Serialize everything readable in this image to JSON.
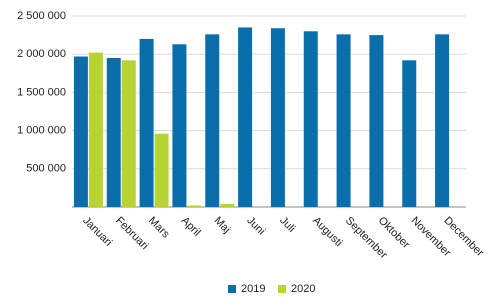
{
  "chart_data": {
    "type": "bar",
    "categories": [
      "Januari",
      "Februari",
      "Mars",
      "April",
      "Maj",
      "Juni",
      "Juli",
      "Augusti",
      "September",
      "Oktober",
      "November",
      "December"
    ],
    "series": [
      {
        "name": "2019",
        "color": "#0a6eab",
        "values": [
          1970000,
          1950000,
          2200000,
          2130000,
          2260000,
          2350000,
          2340000,
          2300000,
          2260000,
          2250000,
          1920000,
          2260000
        ]
      },
      {
        "name": "2020",
        "color": "#b6d433",
        "values": [
          2020000,
          1920000,
          960000,
          20000,
          40000,
          null,
          null,
          null,
          null,
          null,
          null,
          null
        ]
      }
    ],
    "ylim": [
      0,
      2500000
    ],
    "yticks": [
      {
        "value": 500000,
        "label": "500 000"
      },
      {
        "value": 1000000,
        "label": "1 000 000"
      },
      {
        "value": 1500000,
        "label": "1 500 000"
      },
      {
        "value": 2000000,
        "label": "2 000 000"
      },
      {
        "value": 2500000,
        "label": "2 500 000"
      }
    ],
    "grid": true
  }
}
